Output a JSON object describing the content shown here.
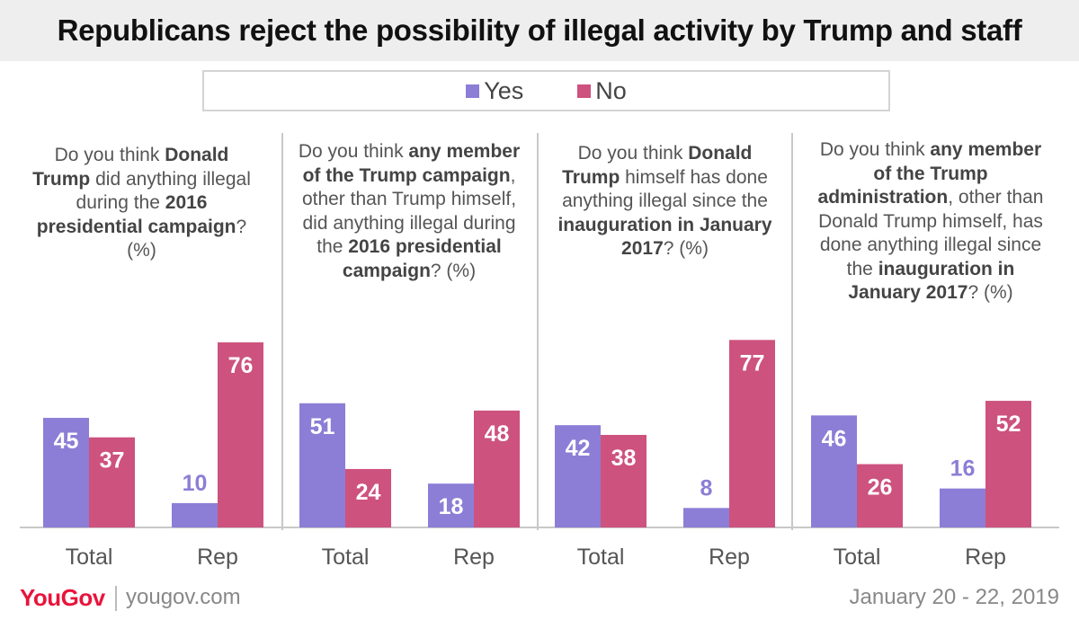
{
  "title": "Republicans reject the possibility of illegal activity by Trump and staff",
  "legend": [
    {
      "label": "Yes",
      "color": "#8c7ed6"
    },
    {
      "label": "No",
      "color": "#cd527e"
    }
  ],
  "footer": {
    "brand": "YouGov",
    "url": "yougov.com",
    "date": "January 20 - 22, 2019"
  },
  "chart_data": {
    "type": "bar",
    "series_names": [
      "Yes",
      "No"
    ],
    "colors": [
      "#8c7ed6",
      "#cd527e"
    ],
    "ylim": [
      0,
      100
    ],
    "panels": [
      {
        "question": [
          {
            "t": "Do you think "
          },
          {
            "t": "Donald Trump",
            "b": true
          },
          {
            "t": " did anything illegal during the "
          },
          {
            "t": "2016 presidential campaign",
            "b": true
          },
          {
            "t": "? (%)"
          }
        ],
        "categories": [
          "Total",
          "Rep"
        ],
        "series": [
          {
            "name": "Yes",
            "values": [
              45,
              10
            ]
          },
          {
            "name": "No",
            "values": [
              37,
              76
            ]
          }
        ]
      },
      {
        "question": [
          {
            "t": "Do you think "
          },
          {
            "t": "any member of the Trump campaign",
            "b": true
          },
          {
            "t": ", other than Trump himself, did anything illegal during the "
          },
          {
            "t": "2016 presidential campaign",
            "b": true
          },
          {
            "t": "? (%)"
          }
        ],
        "categories": [
          "Total",
          "Rep"
        ],
        "series": [
          {
            "name": "Yes",
            "values": [
              51,
              18
            ]
          },
          {
            "name": "No",
            "values": [
              24,
              48
            ]
          }
        ]
      },
      {
        "question": [
          {
            "t": "Do you think "
          },
          {
            "t": "Donald Trump",
            "b": true
          },
          {
            "t": " himself has done anything illegal since the "
          },
          {
            "t": "inauguration in January 2017",
            "b": true
          },
          {
            "t": "? (%)"
          }
        ],
        "categories": [
          "Total",
          "Rep"
        ],
        "series": [
          {
            "name": "Yes",
            "values": [
              42,
              8
            ]
          },
          {
            "name": "No",
            "values": [
              38,
              77
            ]
          }
        ]
      },
      {
        "question": [
          {
            "t": "Do you think "
          },
          {
            "t": "any member of the Trump administration",
            "b": true
          },
          {
            "t": ", other than Donald Trump himself, has done anything illegal since the "
          },
          {
            "t": "inauguration in January 2017",
            "b": true
          },
          {
            "t": "? (%)"
          }
        ],
        "categories": [
          "Total",
          "Rep"
        ],
        "series": [
          {
            "name": "Yes",
            "values": [
              46,
              16
            ]
          },
          {
            "name": "No",
            "values": [
              26,
              52
            ]
          }
        ]
      }
    ]
  }
}
